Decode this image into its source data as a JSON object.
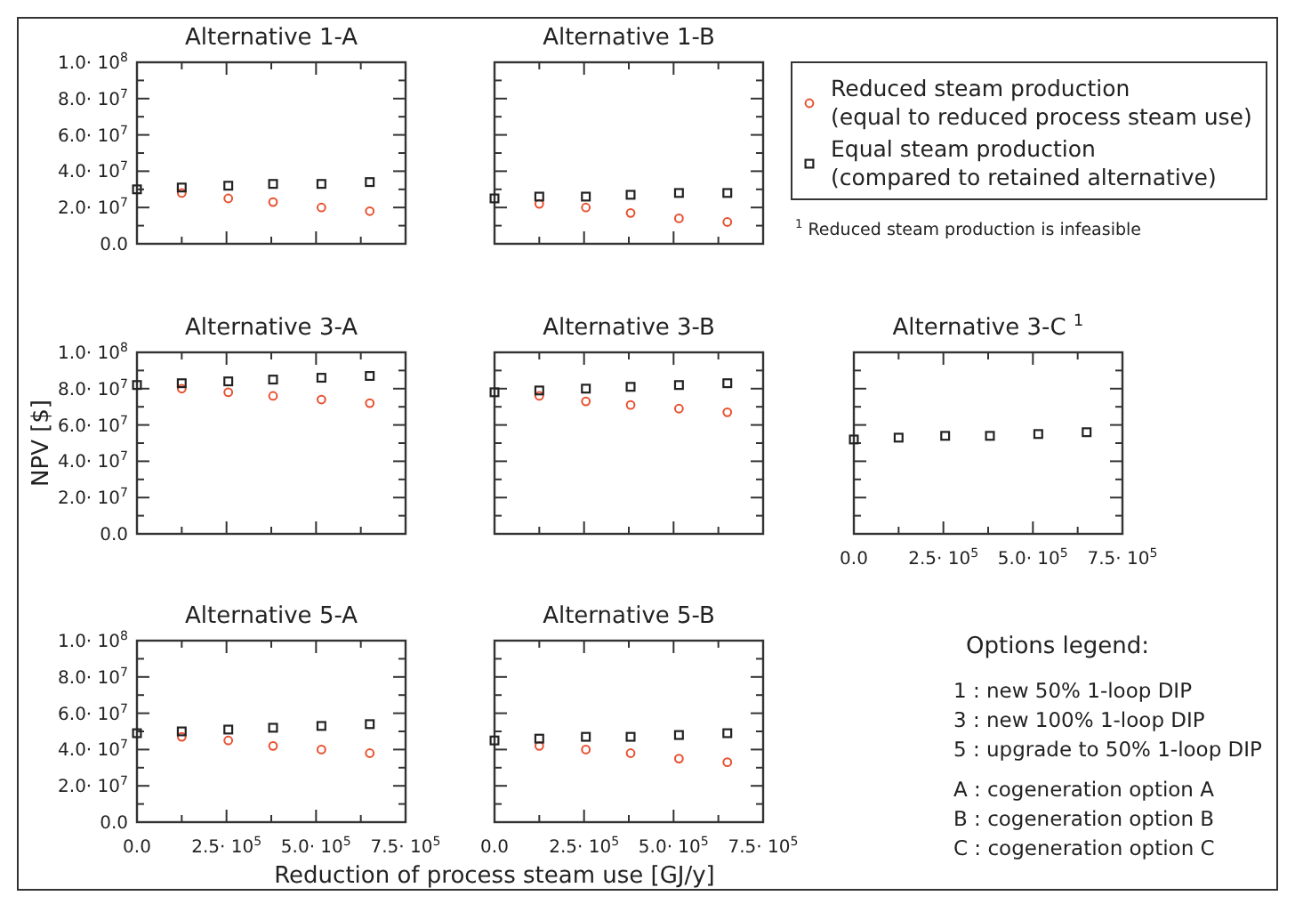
{
  "chart_data": [
    {
      "type": "scatter",
      "title": "Alternative 1-A",
      "tick_labels": "y",
      "xlim": [
        0,
        750000
      ],
      "xticks": [
        {
          "value": 0,
          "label": null
        },
        {
          "value": 125000,
          "label": null
        },
        {
          "value": 250000,
          "label": null
        },
        {
          "value": 375000,
          "label": null
        },
        {
          "value": 500000,
          "label": null
        },
        {
          "value": 625000,
          "label": null
        },
        {
          "value": 750000,
          "label": null
        }
      ],
      "ylim": [
        0,
        100000000
      ],
      "yticks": [
        {
          "value": 0,
          "label": "0.0"
        },
        {
          "value": 10000000,
          "label": null
        },
        {
          "value": 20000000,
          "label": "2.0· 10$^{7}$"
        },
        {
          "value": 30000000,
          "label": null
        },
        {
          "value": 40000000,
          "label": "4.0· 10$^{7}$"
        },
        {
          "value": 50000000,
          "label": null
        },
        {
          "value": 60000000,
          "label": "6.0· 10$^{7}$"
        },
        {
          "value": 70000000,
          "label": null
        },
        {
          "value": 80000000,
          "label": "8.0· 10$^{7}$"
        },
        {
          "value": 90000000,
          "label": null
        },
        {
          "value": 100000000,
          "label": "1.0· 10$^{8}$"
        }
      ],
      "x": [
        0,
        125000,
        255000,
        380000,
        515000,
        650000
      ],
      "series": [
        {
          "color": "#e8502f",
          "marker": "circle",
          "values": [
            null,
            28000000,
            25000000,
            23000000,
            20000000,
            18000000
          ]
        },
        {
          "color": "#222222",
          "marker": "square",
          "values": [
            30000000,
            31000000,
            32000000,
            33000000,
            33000000,
            34000000
          ]
        }
      ]
    },
    {
      "type": "scatter",
      "title": "Alternative 1-B",
      "tick_labels": false,
      "legend": "right",
      "annotations": [
        "$^{1}$ Reduced steam production is infeasible"
      ],
      "xlim": [
        0,
        750000
      ],
      "xticks": [
        {
          "value": 0,
          "label": null
        },
        {
          "value": 125000,
          "label": null
        },
        {
          "value": 250000,
          "label": null
        },
        {
          "value": 375000,
          "label": null
        },
        {
          "value": 500000,
          "label": null
        },
        {
          "value": 625000,
          "label": null
        },
        {
          "value": 750000,
          "label": null
        }
      ],
      "ylim": [
        0,
        100000000
      ],
      "yticks": [
        {
          "value": 0,
          "label": null
        },
        {
          "value": 10000000,
          "label": null
        },
        {
          "value": 20000000,
          "label": null
        },
        {
          "value": 30000000,
          "label": null
        },
        {
          "value": 40000000,
          "label": null
        },
        {
          "value": 50000000,
          "label": null
        },
        {
          "value": 60000000,
          "label": null
        },
        {
          "value": 70000000,
          "label": null
        },
        {
          "value": 80000000,
          "label": null
        },
        {
          "value": 90000000,
          "label": null
        },
        {
          "value": 100000000,
          "label": null
        }
      ],
      "x": [
        0,
        125000,
        255000,
        380000,
        515000,
        650000
      ],
      "series": [
        {
          "name": "Reduced steam production\n(equal to reduced process steam use)",
          "color": "#e8502f",
          "marker": "circle",
          "values": [
            null,
            22000000,
            20000000,
            17000000,
            14000000,
            12000000
          ]
        },
        {
          "name": "Equal steam production\n(compared to retained alternative)",
          "color": "#222222",
          "marker": "square",
          "values": [
            25000000,
            26000000,
            26000000,
            27000000,
            28000000,
            28000000
          ]
        }
      ]
    },
    {
      "type": "scatter",
      "title": "Alternative 3-A",
      "ylabel": "NPV [$]",
      "tick_labels": "y",
      "xlim": [
        0,
        750000
      ],
      "xticks": [
        {
          "value": 0,
          "label": null
        },
        {
          "value": 125000,
          "label": null
        },
        {
          "value": 250000,
          "label": null
        },
        {
          "value": 375000,
          "label": null
        },
        {
          "value": 500000,
          "label": null
        },
        {
          "value": 625000,
          "label": null
        },
        {
          "value": 750000,
          "label": null
        }
      ],
      "ylim": [
        0,
        100000000
      ],
      "yticks": [
        {
          "value": 0,
          "label": "0.0"
        },
        {
          "value": 10000000,
          "label": null
        },
        {
          "value": 20000000,
          "label": "2.0· 10$^{7}$"
        },
        {
          "value": 30000000,
          "label": null
        },
        {
          "value": 40000000,
          "label": "4.0· 10$^{7}$"
        },
        {
          "value": 50000000,
          "label": null
        },
        {
          "value": 60000000,
          "label": "6.0· 10$^{7}$"
        },
        {
          "value": 70000000,
          "label": null
        },
        {
          "value": 80000000,
          "label": "8.0· 10$^{7}$"
        },
        {
          "value": 90000000,
          "label": null
        },
        {
          "value": 100000000,
          "label": "1.0· 10$^{8}$"
        }
      ],
      "x": [
        0,
        125000,
        255000,
        380000,
        515000,
        650000
      ],
      "series": [
        {
          "color": "#e8502f",
          "marker": "circle",
          "values": [
            null,
            80000000,
            78000000,
            76000000,
            74000000,
            72000000
          ]
        },
        {
          "color": "#222222",
          "marker": "square",
          "values": [
            82000000,
            83000000,
            84000000,
            85000000,
            86000000,
            87000000
          ]
        }
      ]
    },
    {
      "type": "scatter",
      "title": "Alternative 3-B",
      "tick_labels": false,
      "xlim": [
        0,
        750000
      ],
      "xticks": [
        {
          "value": 0,
          "label": null
        },
        {
          "value": 125000,
          "label": null
        },
        {
          "value": 250000,
          "label": null
        },
        {
          "value": 375000,
          "label": null
        },
        {
          "value": 500000,
          "label": null
        },
        {
          "value": 625000,
          "label": null
        },
        {
          "value": 750000,
          "label": null
        }
      ],
      "ylim": [
        0,
        100000000
      ],
      "yticks": [
        {
          "value": 0,
          "label": null
        },
        {
          "value": 10000000,
          "label": null
        },
        {
          "value": 20000000,
          "label": null
        },
        {
          "value": 30000000,
          "label": null
        },
        {
          "value": 40000000,
          "label": null
        },
        {
          "value": 50000000,
          "label": null
        },
        {
          "value": 60000000,
          "label": null
        },
        {
          "value": 70000000,
          "label": null
        },
        {
          "value": 80000000,
          "label": null
        },
        {
          "value": 90000000,
          "label": null
        },
        {
          "value": 100000000,
          "label": null
        }
      ],
      "x": [
        0,
        125000,
        255000,
        380000,
        515000,
        650000
      ],
      "series": [
        {
          "color": "#e8502f",
          "marker": "circle",
          "values": [
            null,
            76000000,
            73000000,
            71000000,
            69000000,
            67000000
          ]
        },
        {
          "color": "#222222",
          "marker": "square",
          "values": [
            78000000,
            79000000,
            80000000,
            81000000,
            82000000,
            83000000
          ]
        }
      ]
    },
    {
      "type": "scatter",
      "title": "Alternative 3-C $^{1}$",
      "tick_labels": "x",
      "xlim": [
        0,
        750000
      ],
      "xticks": [
        {
          "value": 0,
          "label": "0.0"
        },
        {
          "value": 125000,
          "label": null
        },
        {
          "value": 250000,
          "label": "2.5· 10$^{5}$"
        },
        {
          "value": 375000,
          "label": null
        },
        {
          "value": 500000,
          "label": "5.0· 10$^{5}$"
        },
        {
          "value": 625000,
          "label": null
        },
        {
          "value": 750000,
          "label": "7.5· 10$^{5}$"
        }
      ],
      "ylim": [
        0,
        100000000
      ],
      "yticks": [
        {
          "value": 0,
          "label": null
        },
        {
          "value": 10000000,
          "label": null
        },
        {
          "value": 20000000,
          "label": null
        },
        {
          "value": 30000000,
          "label": null
        },
        {
          "value": 40000000,
          "label": null
        },
        {
          "value": 50000000,
          "label": null
        },
        {
          "value": 60000000,
          "label": null
        },
        {
          "value": 70000000,
          "label": null
        },
        {
          "value": 80000000,
          "label": null
        },
        {
          "value": 90000000,
          "label": null
        },
        {
          "value": 100000000,
          "label": null
        }
      ],
      "x": [
        0,
        125000,
        255000,
        380000,
        515000,
        650000
      ],
      "series": [
        {
          "color": "#222222",
          "marker": "square",
          "values": [
            52000000,
            53000000,
            54000000,
            54000000,
            55000000,
            56000000
          ]
        }
      ]
    },
    {
      "type": "scatter",
      "title": "Alternative 5-A",
      "xlabel": "Reduction of process steam use [GJ/y]",
      "xlim": [
        0,
        750000
      ],
      "xticks": [
        {
          "value": 0,
          "label": "0.0"
        },
        {
          "value": 125000,
          "label": null
        },
        {
          "value": 250000,
          "label": "2.5· 10$^{5}$"
        },
        {
          "value": 375000,
          "label": null
        },
        {
          "value": 500000,
          "label": "5.0· 10$^{5}$"
        },
        {
          "value": 625000,
          "label": null
        },
        {
          "value": 750000,
          "label": "7.5· 10$^{5}$"
        }
      ],
      "ylim": [
        0,
        100000000
      ],
      "yticks": [
        {
          "value": 0,
          "label": "0.0"
        },
        {
          "value": 10000000,
          "label": null
        },
        {
          "value": 20000000,
          "label": "2.0· 10$^{7}$"
        },
        {
          "value": 30000000,
          "label": null
        },
        {
          "value": 40000000,
          "label": "4.0· 10$^{7}$"
        },
        {
          "value": 50000000,
          "label": null
        },
        {
          "value": 60000000,
          "label": "6.0· 10$^{7}$"
        },
        {
          "value": 70000000,
          "label": null
        },
        {
          "value": 80000000,
          "label": "8.0· 10$^{7}$"
        },
        {
          "value": 90000000,
          "label": null
        },
        {
          "value": 100000000,
          "label": "1.0· 10$^{8}$"
        }
      ],
      "x": [
        0,
        125000,
        255000,
        380000,
        515000,
        650000
      ],
      "series": [
        {
          "color": "#e8502f",
          "marker": "circle",
          "values": [
            null,
            47000000,
            45000000,
            42000000,
            40000000,
            38000000
          ]
        },
        {
          "color": "#222222",
          "marker": "square",
          "values": [
            49000000,
            50000000,
            51000000,
            52000000,
            53000000,
            54000000
          ]
        }
      ]
    },
    {
      "type": "scatter",
      "title": "Alternative 5-B",
      "tick_labels": "x",
      "xlim": [
        0,
        750000
      ],
      "xticks": [
        {
          "value": 0,
          "label": "0.0"
        },
        {
          "value": 125000,
          "label": null
        },
        {
          "value": 250000,
          "label": "2.5· 10$^{5}$"
        },
        {
          "value": 375000,
          "label": null
        },
        {
          "value": 500000,
          "label": "5.0· 10$^{5}$"
        },
        {
          "value": 625000,
          "label": null
        },
        {
          "value": 750000,
          "label": "7.5· 10$^{5}$"
        }
      ],
      "ylim": [
        0,
        100000000
      ],
      "yticks": [
        {
          "value": 0,
          "label": null
        },
        {
          "value": 10000000,
          "label": null
        },
        {
          "value": 20000000,
          "label": null
        },
        {
          "value": 30000000,
          "label": null
        },
        {
          "value": 40000000,
          "label": null
        },
        {
          "value": 50000000,
          "label": null
        },
        {
          "value": 60000000,
          "label": null
        },
        {
          "value": 70000000,
          "label": null
        },
        {
          "value": 80000000,
          "label": null
        },
        {
          "value": 90000000,
          "label": null
        },
        {
          "value": 100000000,
          "label": null
        }
      ],
      "x": [
        0,
        125000,
        255000,
        380000,
        515000,
        650000
      ],
      "series": [
        {
          "color": "#e8502f",
          "marker": "circle",
          "values": [
            null,
            42000000,
            40000000,
            38000000,
            35000000,
            33000000
          ]
        },
        {
          "color": "#222222",
          "marker": "square",
          "values": [
            45000000,
            46000000,
            47000000,
            47000000,
            48000000,
            49000000
          ]
        }
      ]
    },
    {
      "type": "other",
      "title": "Options legend:",
      "annotations": [
        "1 : new 50% 1-loop DIP",
        "3 : new 100% 1-loop DIP",
        "5 : upgrade to 50% 1-loop DIP",
        "A : cogeneration option A",
        "B : cogeneration option B",
        "C : cogeneration option C"
      ]
    }
  ]
}
